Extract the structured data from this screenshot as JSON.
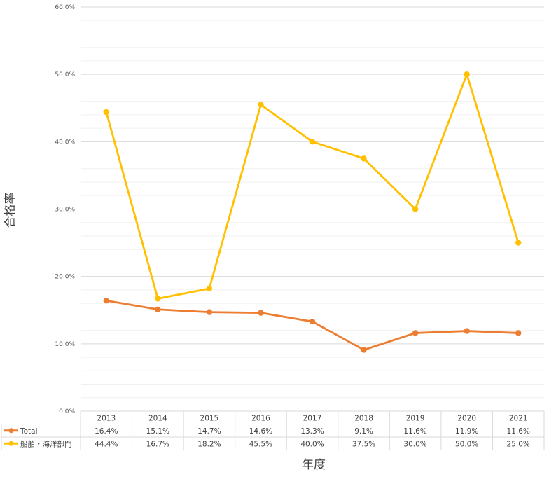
{
  "chart_data": {
    "type": "line",
    "categories": [
      "2013",
      "2014",
      "2015",
      "2016",
      "2017",
      "2018",
      "2019",
      "2020",
      "2021"
    ],
    "ylabel": "合格率",
    "xlabel": "年度",
    "ylim": [
      0,
      60
    ],
    "y_ticks": [
      "0.0%",
      "10.0%",
      "20.0%",
      "30.0%",
      "40.0%",
      "50.0%",
      "60.0%"
    ],
    "grid": "major and minor horizontal gridlines",
    "legend": "data table below chart",
    "series": [
      {
        "name": "Total",
        "color": "#ED7D31",
        "values": [
          16.4,
          15.1,
          14.7,
          14.6,
          13.3,
          9.1,
          11.6,
          11.9,
          11.6
        ],
        "labels": [
          "16.4%",
          "15.1%",
          "14.7%",
          "14.6%",
          "13.3%",
          "9.1%",
          "11.6%",
          "11.9%",
          "11.6%"
        ]
      },
      {
        "name": "船舶・海洋部門",
        "color": "#FFC000",
        "values": [
          44.4,
          16.7,
          18.2,
          45.5,
          40.0,
          37.5,
          30.0,
          50.0,
          25.0
        ],
        "labels": [
          "44.4%",
          "16.7%",
          "18.2%",
          "45.5%",
          "40.0%",
          "37.5%",
          "30.0%",
          "50.0%",
          "25.0%"
        ]
      }
    ]
  }
}
